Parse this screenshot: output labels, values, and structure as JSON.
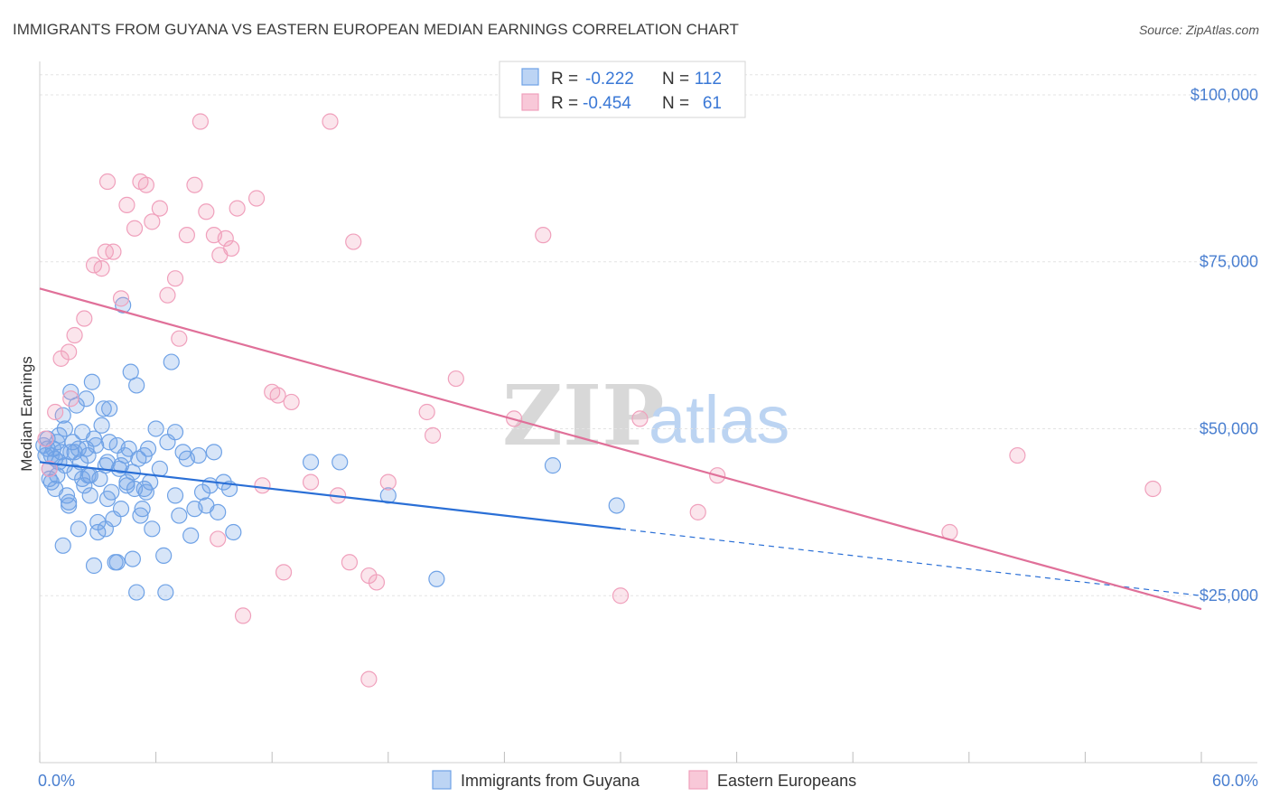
{
  "chart_data": {
    "type": "scatter",
    "title": "IMMIGRANTS FROM GUYANA VS EASTERN EUROPEAN MEDIAN EARNINGS CORRELATION CHART",
    "source": "Source: ZipAtlas.com",
    "ylabel": "Median Earnings",
    "xlabel": "",
    "xlim": [
      0,
      60
    ],
    "ylim": [
      0,
      105000
    ],
    "x_tick_labels": {
      "left": "0.0%",
      "right": "60.0%"
    },
    "y_ticks": [
      {
        "value": 25000,
        "label": "$25,000"
      },
      {
        "value": 50000,
        "label": "$50,000"
      },
      {
        "value": 75000,
        "label": "$75,000"
      },
      {
        "value": 100000,
        "label": "$100,000"
      }
    ],
    "watermark": {
      "zip": "ZIP",
      "atlas": "atlas"
    },
    "legend": {
      "r_label": "R =",
      "n_label": "N =",
      "rows": [
        {
          "series": "Immigrants from Guyana",
          "r": "-0.222",
          "n": "112"
        },
        {
          "series": "Eastern Europeans",
          "r": "-0.454",
          "n": "61"
        }
      ]
    },
    "series": [
      {
        "name": "Immigrants from Guyana",
        "color": "#6fa2e6",
        "line_color": "#2a6fd6",
        "trend": {
          "x0": 0,
          "y0": 45000,
          "x1": 30,
          "y1": 35000,
          "dash_to_x": 60,
          "dash_to_y": 25000
        },
        "points": [
          [
            0.2,
            47500
          ],
          [
            0.3,
            46000
          ],
          [
            0.4,
            48500
          ],
          [
            0.5,
            44000
          ],
          [
            0.6,
            42000
          ],
          [
            0.7,
            47000
          ],
          [
            0.8,
            45500
          ],
          [
            0.9,
            43000
          ],
          [
            1.0,
            49000
          ],
          [
            1.1,
            46500
          ],
          [
            1.2,
            52000
          ],
          [
            1.3,
            44500
          ],
          [
            1.4,
            40000
          ],
          [
            1.5,
            38500
          ],
          [
            1.6,
            55500
          ],
          [
            1.7,
            48000
          ],
          [
            1.8,
            43500
          ],
          [
            1.9,
            53500
          ],
          [
            2.0,
            47000
          ],
          [
            2.1,
            45000
          ],
          [
            2.2,
            49500
          ],
          [
            2.3,
            41500
          ],
          [
            2.4,
            54500
          ],
          [
            2.5,
            46000
          ],
          [
            2.6,
            43000
          ],
          [
            2.7,
            57000
          ],
          [
            2.8,
            29500
          ],
          [
            2.9,
            47500
          ],
          [
            3.0,
            36000
          ],
          [
            3.1,
            42500
          ],
          [
            3.2,
            50500
          ],
          [
            3.3,
            53000
          ],
          [
            3.4,
            35000
          ],
          [
            3.5,
            45000
          ],
          [
            3.6,
            48000
          ],
          [
            3.7,
            40500
          ],
          [
            3.8,
            36500
          ],
          [
            3.9,
            30000
          ],
          [
            4.0,
            47500
          ],
          [
            4.1,
            44000
          ],
          [
            4.2,
            38000
          ],
          [
            4.3,
            68500
          ],
          [
            4.4,
            46000
          ],
          [
            4.5,
            42000
          ],
          [
            4.6,
            47000
          ],
          [
            4.7,
            58500
          ],
          [
            4.8,
            43500
          ],
          [
            4.9,
            41000
          ],
          [
            5.0,
            56500
          ],
          [
            5.1,
            45500
          ],
          [
            5.2,
            37000
          ],
          [
            5.3,
            38000
          ],
          [
            5.4,
            41000
          ],
          [
            5.5,
            40500
          ],
          [
            5.6,
            47000
          ],
          [
            5.7,
            42000
          ],
          [
            5.8,
            35000
          ],
          [
            6.0,
            50000
          ],
          [
            6.2,
            44000
          ],
          [
            6.4,
            31000
          ],
          [
            6.6,
            48000
          ],
          [
            6.8,
            60000
          ],
          [
            7.0,
            49500
          ],
          [
            7.2,
            37000
          ],
          [
            7.4,
            46500
          ],
          [
            7.6,
            45500
          ],
          [
            7.8,
            34000
          ],
          [
            8.0,
            38000
          ],
          [
            8.2,
            46000
          ],
          [
            8.4,
            40500
          ],
          [
            8.6,
            38500
          ],
          [
            8.8,
            41500
          ],
          [
            9.0,
            46500
          ],
          [
            9.2,
            37500
          ],
          [
            9.5,
            42000
          ],
          [
            9.8,
            41000
          ],
          [
            10.0,
            34500
          ],
          [
            0.5,
            42500
          ],
          [
            1.0,
            45000
          ],
          [
            1.5,
            39000
          ],
          [
            2.0,
            35000
          ],
          [
            2.5,
            43000
          ],
          [
            3.0,
            34500
          ],
          [
            3.5,
            39500
          ],
          [
            4.0,
            30000
          ],
          [
            4.5,
            41500
          ],
          [
            5.0,
            25500
          ],
          [
            6.5,
            25500
          ],
          [
            7.0,
            40000
          ],
          [
            1.2,
            32500
          ],
          [
            2.8,
            48500
          ],
          [
            3.6,
            53000
          ],
          [
            4.2,
            44500
          ],
          [
            0.8,
            41000
          ],
          [
            1.6,
            46500
          ],
          [
            2.4,
            47000
          ],
          [
            0.4,
            47000
          ],
          [
            0.6,
            46000
          ],
          [
            0.9,
            48000
          ],
          [
            1.3,
            50000
          ],
          [
            1.8,
            46500
          ],
          [
            2.2,
            42500
          ],
          [
            2.6,
            40000
          ],
          [
            3.4,
            44500
          ],
          [
            14.0,
            45000
          ],
          [
            15.5,
            45000
          ],
          [
            18.0,
            40000
          ],
          [
            20.5,
            27500
          ],
          [
            26.5,
            44500
          ],
          [
            29.8,
            38500
          ],
          [
            4.8,
            30500
          ],
          [
            5.4,
            46000
          ]
        ]
      },
      {
        "name": "Eastern Europeans",
        "color": "#f0a0bc",
        "line_color": "#e07099",
        "trend": {
          "x0": 0,
          "y0": 71000,
          "x1": 60,
          "y1": 23000
        },
        "points": [
          [
            0.3,
            48500
          ],
          [
            0.5,
            44000
          ],
          [
            0.8,
            52500
          ],
          [
            1.1,
            60500
          ],
          [
            1.5,
            61500
          ],
          [
            1.8,
            64000
          ],
          [
            2.3,
            66500
          ],
          [
            2.8,
            74500
          ],
          [
            3.2,
            74000
          ],
          [
            3.5,
            87000
          ],
          [
            3.8,
            76500
          ],
          [
            4.2,
            69500
          ],
          [
            4.5,
            83500
          ],
          [
            4.9,
            80000
          ],
          [
            5.2,
            87000
          ],
          [
            5.5,
            86500
          ],
          [
            5.8,
            81000
          ],
          [
            6.2,
            83000
          ],
          [
            6.6,
            70000
          ],
          [
            7.0,
            72500
          ],
          [
            7.2,
            63500
          ],
          [
            7.6,
            79000
          ],
          [
            8.0,
            86500
          ],
          [
            8.3,
            96000
          ],
          [
            8.6,
            82500
          ],
          [
            9.0,
            79000
          ],
          [
            9.3,
            76000
          ],
          [
            9.6,
            78500
          ],
          [
            9.9,
            77000
          ],
          [
            10.2,
            83000
          ],
          [
            11.2,
            84500
          ],
          [
            11.5,
            41500
          ],
          [
            12.0,
            55500
          ],
          [
            12.3,
            55000
          ],
          [
            12.6,
            28500
          ],
          [
            13.0,
            54000
          ],
          [
            14.0,
            42000
          ],
          [
            15.0,
            96000
          ],
          [
            15.4,
            40000
          ],
          [
            16.0,
            30000
          ],
          [
            16.2,
            78000
          ],
          [
            17.0,
            28000
          ],
          [
            17.4,
            27000
          ],
          [
            18.0,
            42000
          ],
          [
            20.0,
            52500
          ],
          [
            20.3,
            49000
          ],
          [
            21.5,
            57500
          ],
          [
            24.5,
            51500
          ],
          [
            26.0,
            79000
          ],
          [
            30.0,
            25000
          ],
          [
            31.0,
            51500
          ],
          [
            34.0,
            37500
          ],
          [
            35.0,
            43000
          ],
          [
            9.2,
            33500
          ],
          [
            10.5,
            22000
          ],
          [
            17.0,
            12500
          ],
          [
            47.0,
            34500
          ],
          [
            50.5,
            46000
          ],
          [
            57.5,
            41000
          ],
          [
            3.4,
            76500
          ],
          [
            1.6,
            54500
          ]
        ]
      }
    ]
  }
}
